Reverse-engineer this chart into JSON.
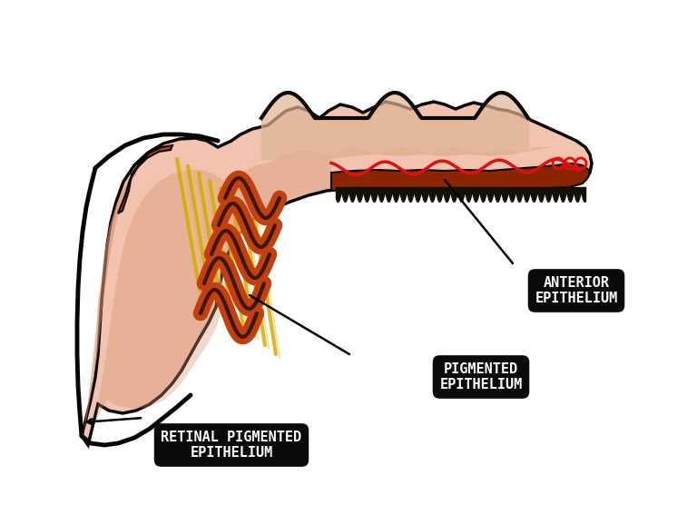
{
  "bg_color": "#ffffff",
  "label_bg_color": "#0a0a0a",
  "label_text_color": "#ffffff",
  "labels": {
    "anterior": "ANTERIOR\nEPITHELIUM",
    "pigmented": "PIGMENTED\nEPITHELIUM",
    "retinal": "RETINAL PIGMENTED\nEPITHELIUM"
  },
  "colors": {
    "skin_light": "#f2c4b0",
    "skin_pink": "#e8a898",
    "skin_peach": "#d4906e",
    "dark_red": "#8B2500",
    "medium_red": "#c04010",
    "bright_red": "#dd1111",
    "yellow": "#d4aa10",
    "dark_outline": "#0a0505",
    "teeth_dark": "#151005",
    "tan_brown": "#c8a070"
  }
}
